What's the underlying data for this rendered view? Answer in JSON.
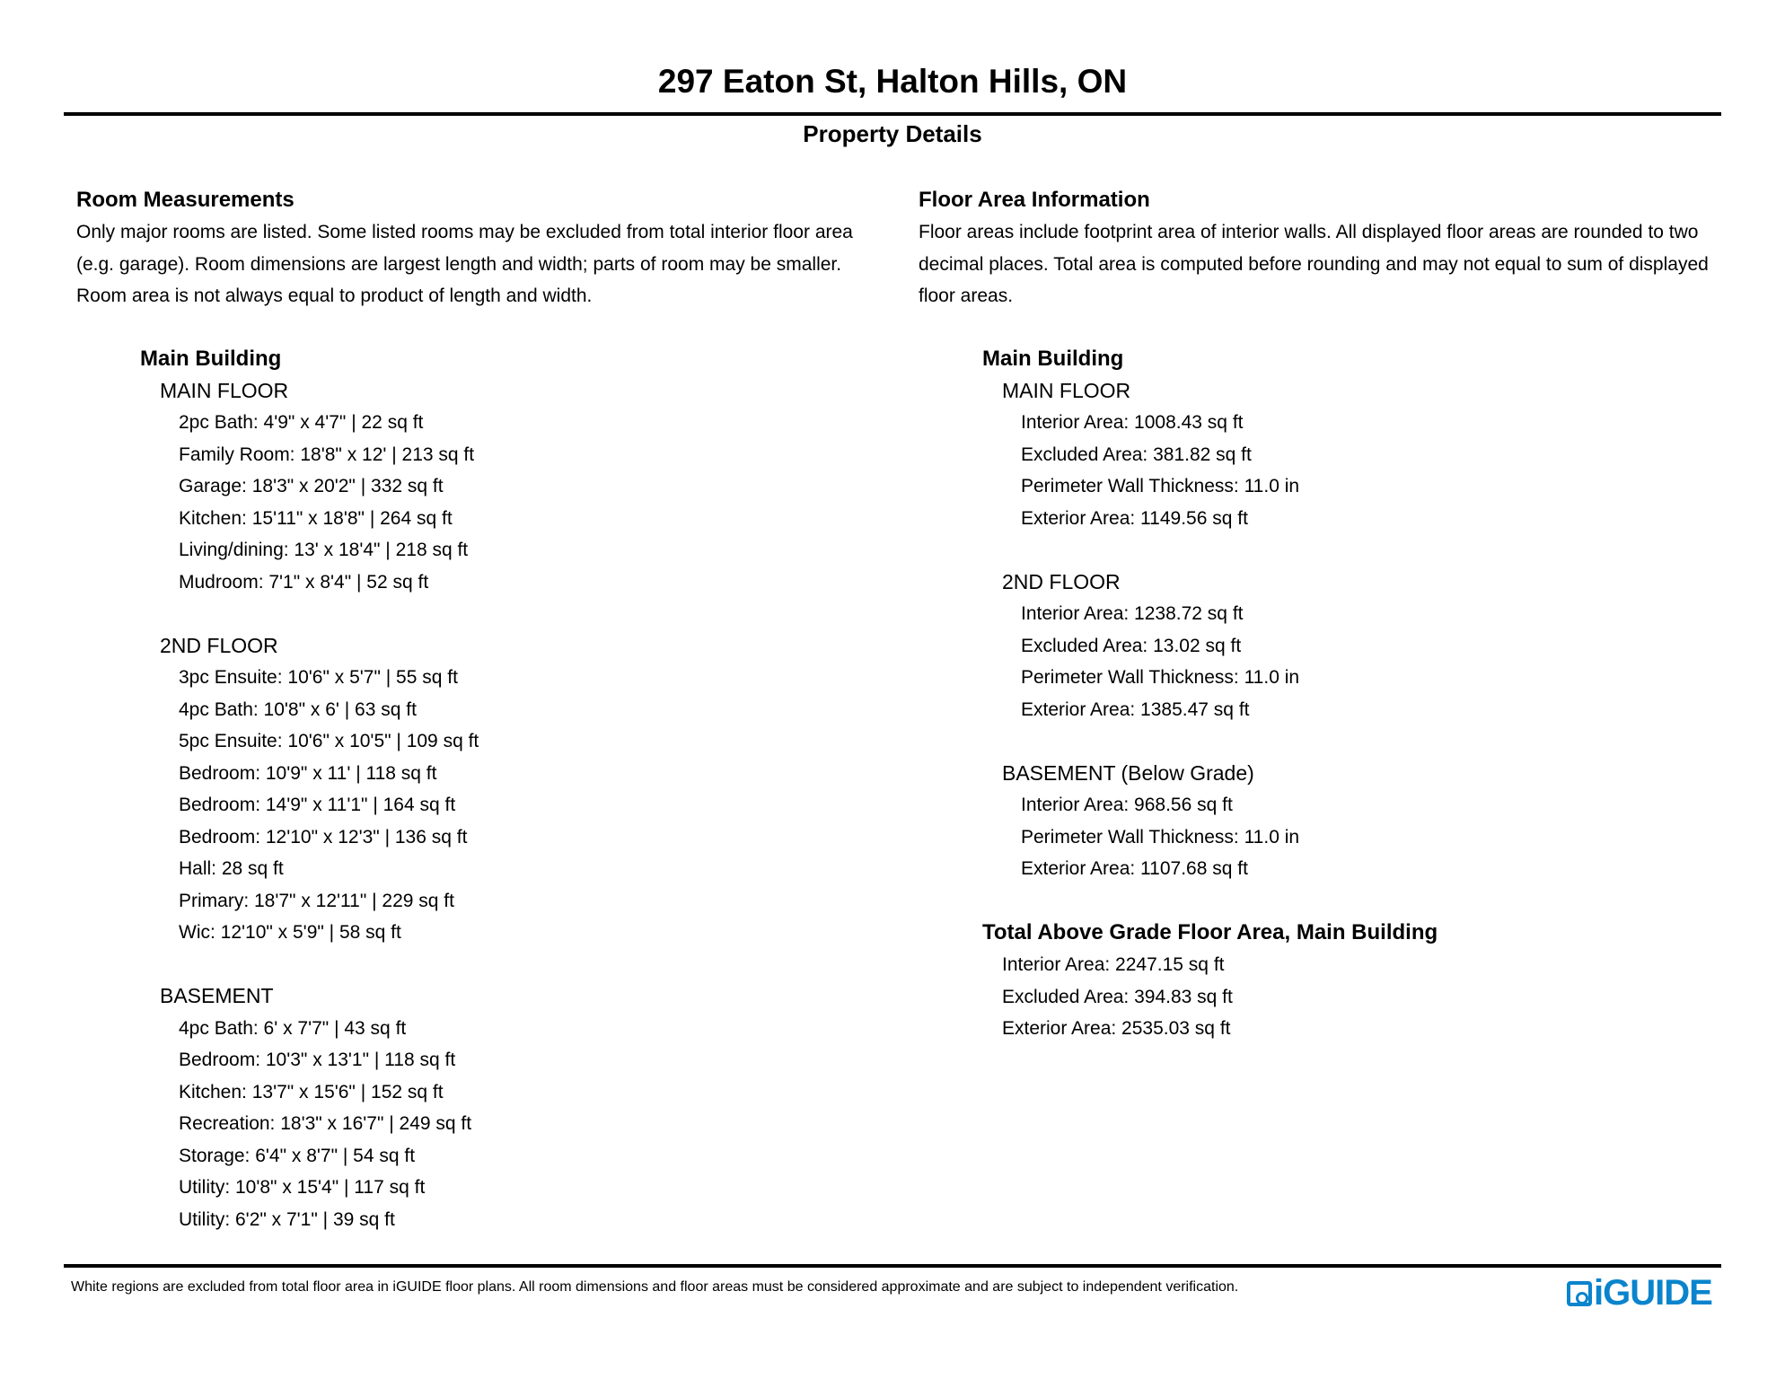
{
  "header": {
    "title": "297 Eaton St, Halton Hills, ON",
    "subtitle": "Property Details"
  },
  "room_measurements": {
    "heading": "Room Measurements",
    "description": [
      "Only major rooms are listed. Some listed rooms may be excluded from total interior floor area",
      "(e.g. garage). Room dimensions are largest length and width; parts of room may be smaller.",
      "Room area is not always equal to product of length and width."
    ],
    "building": "Main Building",
    "floors": [
      {
        "name": "MAIN FLOOR",
        "items": [
          "2pc Bath: 4'9\" x 4'7\" | 22 sq ft",
          "Family Room: 18'8\" x 12' | 213 sq ft",
          "Garage: 18'3\" x 20'2\" | 332 sq ft",
          "Kitchen: 15'11\" x 18'8\" | 264 sq ft",
          "Living/dining: 13' x 18'4\" | 218 sq ft",
          "Mudroom: 7'1\" x 8'4\" | 52 sq ft"
        ]
      },
      {
        "name": "2ND FLOOR",
        "items": [
          "3pc Ensuite: 10'6\" x 5'7\" | 55 sq ft",
          "4pc Bath: 10'8\" x 6' | 63 sq ft",
          "5pc Ensuite: 10'6\" x 10'5\" | 109 sq ft",
          "Bedroom: 10'9\" x 11' | 118 sq ft",
          "Bedroom: 14'9\" x 11'1\" | 164 sq ft",
          "Bedroom: 12'10\" x 12'3\" | 136 sq ft",
          "Hall: 28 sq ft",
          "Primary: 18'7\" x 12'11\" | 229 sq ft",
          "Wic: 12'10\" x 5'9\" | 58 sq ft"
        ]
      },
      {
        "name": "BASEMENT",
        "items": [
          "4pc Bath: 6' x 7'7\" | 43 sq ft",
          "Bedroom: 10'3\" x 13'1\" | 118 sq ft",
          "Kitchen: 13'7\" x 15'6\" | 152 sq ft",
          "Recreation: 18'3\" x 16'7\" | 249 sq ft",
          "Storage: 6'4\" x 8'7\" | 54 sq ft",
          "Utility: 10'8\" x 15'4\" | 117 sq ft",
          "Utility: 6'2\" x 7'1\" | 39 sq ft"
        ]
      }
    ]
  },
  "floor_area": {
    "heading": "Floor Area Information",
    "description": [
      "Floor areas include footprint area of interior walls. All displayed floor areas are rounded to two",
      "decimal places. Total area is computed before rounding and may not equal to sum of displayed",
      "floor areas."
    ],
    "building": "Main Building",
    "floors": [
      {
        "name": "MAIN FLOOR",
        "items": [
          "Interior Area: 1008.43 sq ft",
          "Excluded Area: 381.82 sq ft",
          "Perimeter Wall Thickness: 11.0 in",
          "Exterior Area: 1149.56 sq ft"
        ]
      },
      {
        "name": "2ND FLOOR",
        "items": [
          "Interior Area: 1238.72 sq ft",
          "Excluded Area: 13.02 sq ft",
          "Perimeter Wall Thickness: 11.0 in",
          "Exterior Area: 1385.47 sq ft"
        ]
      },
      {
        "name": "BASEMENT (Below Grade)",
        "items": [
          "Interior Area: 968.56 sq ft",
          "Perimeter Wall Thickness: 11.0 in",
          "Exterior Area: 1107.68 sq ft"
        ]
      }
    ],
    "total": {
      "heading": "Total Above Grade Floor Area, Main Building",
      "items": [
        "Interior Area: 2247.15 sq ft",
        "Excluded Area: 394.83 sq ft",
        "Exterior Area: 2535.03 sq ft"
      ]
    }
  },
  "footer": {
    "note": "White regions are excluded from total floor area in iGUIDE floor plans. All room dimensions and floor areas must be considered approximate and are subject to independent verification.",
    "logo_text": "iGUIDE",
    "logo_color": "#0a84cc"
  }
}
